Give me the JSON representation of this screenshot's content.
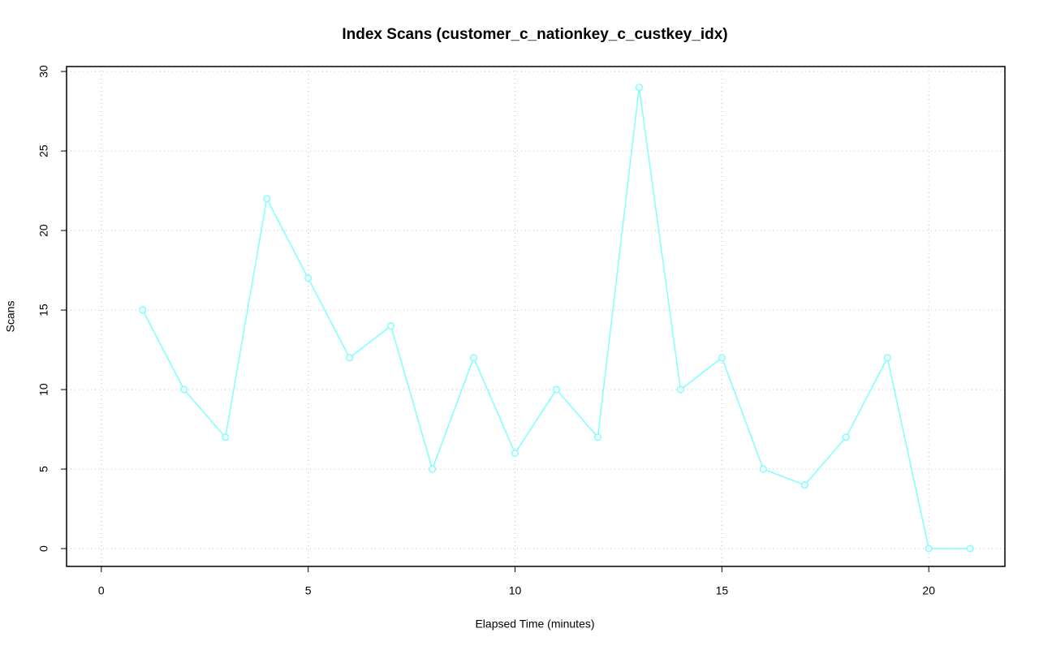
{
  "chart_data": {
    "type": "line",
    "title": "Index Scans (customer_c_nationkey_c_custkey_idx)",
    "x_label": "Elapsed Time (minutes)",
    "y_label": "Scans",
    "x": [
      1,
      2,
      3,
      4,
      5,
      6,
      7,
      8,
      9,
      10,
      11,
      12,
      13,
      14,
      15,
      16,
      17,
      18,
      19,
      20,
      21
    ],
    "series": [
      {
        "name": "Index Scans",
        "color": "#7fffff",
        "values": [
          15,
          10,
          7,
          22,
          17,
          12,
          14,
          5,
          12,
          6,
          10,
          7,
          29,
          10,
          12,
          5,
          4,
          7,
          12,
          0,
          0
        ]
      }
    ],
    "xlim": [
      -0.84,
      21.84
    ],
    "xticks": [
      0,
      5,
      10,
      15,
      20
    ],
    "ylim": [
      -1.12,
      30.31
    ],
    "yticks": [
      0,
      5,
      10,
      15,
      20,
      25,
      30
    ],
    "grid": true
  }
}
